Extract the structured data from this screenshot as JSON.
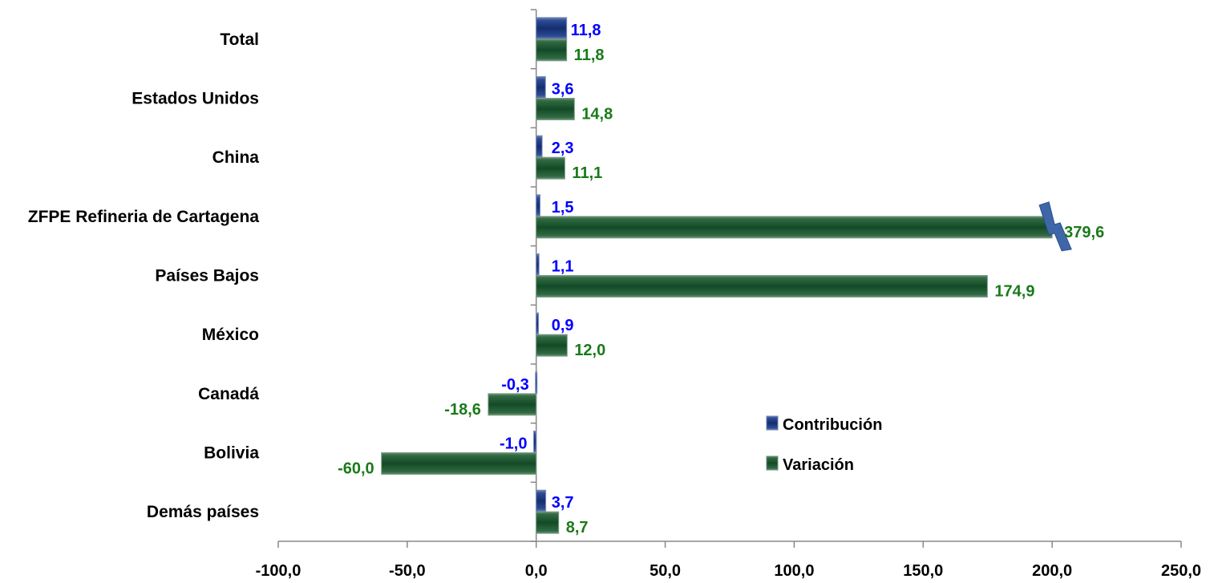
{
  "chart_data": {
    "type": "bar",
    "orientation": "horizontal",
    "categories": [
      "Total",
      "Estados Unidos",
      "China",
      "ZFPE Refineria de Cartagena",
      "Países Bajos",
      "México",
      "Canadá",
      "Bolivia",
      "Demás países"
    ],
    "series": [
      {
        "name": "Contribución",
        "color": "#1F3A7A",
        "label_color": "#0000FF",
        "values": [
          11.8,
          3.6,
          2.3,
          1.5,
          1.1,
          0.9,
          -0.3,
          -1.0,
          3.7
        ],
        "labels": [
          "11,8",
          "3,6",
          "2,3",
          "1,5",
          "1,1",
          "0,9",
          "-0,3",
          "-1,0",
          "3,7"
        ]
      },
      {
        "name": "Variación",
        "color": "#1E5A32",
        "label_color": "#1A7A1A",
        "values": [
          11.8,
          14.8,
          11.1,
          379.6,
          174.9,
          12.0,
          -18.6,
          -60.0,
          8.7
        ],
        "labels": [
          "11,8",
          "14,8",
          "11,1",
          "379,6",
          "174,9",
          "12,0",
          "-18,6",
          "-60,0",
          "8,7"
        ]
      }
    ],
    "xlim": [
      -100,
      250
    ],
    "axis_break": {
      "category": "ZFPE Refineria de Cartagena",
      "series": "Variación",
      "shown_up_to": 200
    },
    "x_ticks": [
      -100,
      -50,
      0,
      50,
      100,
      150,
      200,
      250
    ],
    "x_tick_labels": [
      "-100,0",
      "-50,0",
      "0,0",
      "50,0",
      "100,0",
      "150,0",
      "200,0",
      "250,0"
    ],
    "legend": {
      "position": "lower-right-inside",
      "entries": [
        "Contribución",
        "Variación"
      ]
    },
    "grid": false
  }
}
